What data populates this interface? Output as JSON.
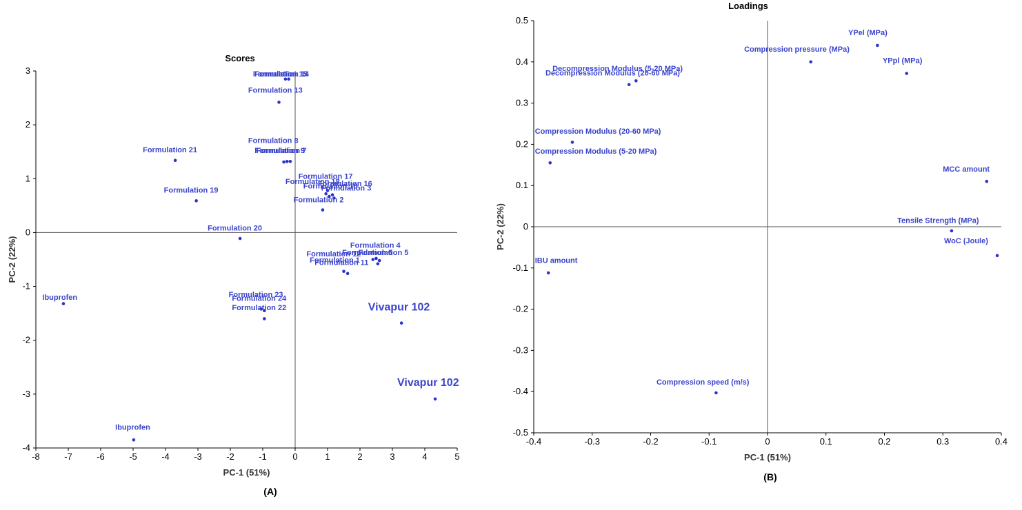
{
  "colors": {
    "marker": "#2a34c8",
    "label": "#3a44cc",
    "axis": "#000000"
  },
  "chart_data": [
    {
      "type": "scatter",
      "title": "Scores",
      "xlabel": "PC-1 (51%)",
      "ylabel": "PC-2 (22%)",
      "xlim": [
        -8,
        5
      ],
      "ylim": [
        -4,
        3
      ],
      "xticks": [
        -8,
        -7,
        -6,
        -5,
        -4,
        -3,
        -2,
        -1,
        0,
        1,
        2,
        3,
        4,
        5
      ],
      "yticks": [
        -4,
        -3,
        -2,
        -1,
        0,
        1,
        2,
        3
      ],
      "panel_label": "(A)",
      "grid": false,
      "points": [
        {
          "label": "Formulation 15",
          "x": -0.3,
          "y": 2.85,
          "lx": -1.3,
          "ly": 2.9
        },
        {
          "label": "Formulation 14",
          "x": -0.2,
          "y": 2.85,
          "lx": -1.25,
          "ly": 2.9
        },
        {
          "label": "Formulation 13",
          "x": -0.5,
          "y": 2.42,
          "lx": -1.45,
          "ly": 2.6
        },
        {
          "label": "Formulation 8",
          "x": -0.35,
          "y": 1.31,
          "lx": -1.45,
          "ly": 1.66
        },
        {
          "label": "Formulation 9",
          "x": -0.25,
          "y": 1.32,
          "lx": -1.25,
          "ly": 1.48
        },
        {
          "label": "Formulation 7",
          "x": -0.15,
          "y": 1.32,
          "lx": -1.2,
          "ly": 1.48
        },
        {
          "label": "Formulation 21",
          "x": -3.7,
          "y": 1.34,
          "lx": -4.7,
          "ly": 1.49
        },
        {
          "label": "Formulation 19",
          "x": -3.05,
          "y": 0.59,
          "lx": -4.05,
          "ly": 0.74
        },
        {
          "label": "Formulation 17",
          "x": 1.0,
          "y": 0.78,
          "lx": 0.1,
          "ly": 1.0
        },
        {
          "label": "Formulation 18",
          "x": 0.95,
          "y": 0.72,
          "lx": -0.3,
          "ly": 0.9
        },
        {
          "label": "Formulation 16",
          "x": 1.15,
          "y": 0.7,
          "lx": 0.7,
          "ly": 0.86
        },
        {
          "label": "Formulation 10",
          "x": 1.05,
          "y": 0.67,
          "lx": 0.25,
          "ly": 0.82
        },
        {
          "label": "Formulation 3",
          "x": 1.2,
          "y": 0.64,
          "lx": 0.8,
          "ly": 0.78
        },
        {
          "label": "Formulation 2",
          "x": 0.85,
          "y": 0.42,
          "lx": -0.05,
          "ly": 0.56
        },
        {
          "label": "Formulation 20",
          "x": -1.7,
          "y": -0.11,
          "lx": -2.7,
          "ly": 0.04
        },
        {
          "label": "Formulation 4",
          "x": 2.5,
          "y": -0.48,
          "lx": 1.7,
          "ly": -0.28
        },
        {
          "label": "Formulation 5",
          "x": 2.6,
          "y": -0.52,
          "lx": 1.95,
          "ly": -0.42
        },
        {
          "label": "Formulation 6",
          "x": 2.4,
          "y": -0.5,
          "lx": 1.45,
          "ly": -0.42
        },
        {
          "label": "Formulation 12",
          "x": 1.5,
          "y": -0.72,
          "lx": 0.35,
          "ly": -0.44
        },
        {
          "label": "Formulation 11",
          "x": 1.62,
          "y": -0.76,
          "lx": 0.6,
          "ly": -0.6
        },
        {
          "label": "Formulation 1",
          "x": 2.55,
          "y": -0.58,
          "lx": 0.45,
          "ly": -0.56
        },
        {
          "label": "Formulation 23",
          "x": -1.05,
          "y": -1.42,
          "lx": -2.05,
          "ly": -1.2
        },
        {
          "label": "Formulation 24",
          "x": -0.95,
          "y": -1.45,
          "lx": -1.95,
          "ly": -1.27
        },
        {
          "label": "Formulation 22",
          "x": -0.95,
          "y": -1.6,
          "lx": -1.95,
          "ly": -1.44
        },
        {
          "label": "Ibuprofen",
          "x": -7.15,
          "y": -1.32,
          "lx": -7.8,
          "ly": -1.25
        },
        {
          "label": "Ibuprofen",
          "x": -4.98,
          "y": -3.85,
          "lx": -5.55,
          "ly": -3.66
        },
        {
          "label": "Vivapur 102",
          "x": 3.28,
          "y": -1.68,
          "lx": 2.25,
          "ly": -1.45,
          "big": true
        },
        {
          "label": "Vivapur 102",
          "x": 4.32,
          "y": -3.09,
          "lx": 3.15,
          "ly": -2.85,
          "big": true
        }
      ]
    },
    {
      "type": "scatter",
      "title": "Loadings",
      "xlabel": "PC-1 (51%)",
      "ylabel": "PC-2 (22%)",
      "xlim": [
        -0.4,
        0.4
      ],
      "ylim": [
        -0.5,
        0.5
      ],
      "xticks": [
        "-0.4",
        "-0.3",
        "-0.2",
        "-0.1",
        "0",
        "0.1",
        "0.2",
        "0.3",
        "0.4"
      ],
      "yticks": [
        "-0.5",
        "-0.4",
        "-0.3",
        "-0.2",
        "-0.1",
        "0",
        "0.1",
        "0.2",
        "0.3",
        "0.4",
        "0.5"
      ],
      "panel_label": "(B)",
      "grid": false,
      "points": [
        {
          "label": "YPel (MPa)",
          "x": 0.188,
          "y": 0.44,
          "lx": 0.138,
          "ly": 0.465
        },
        {
          "label": "Compression pressure (MPa)",
          "x": 0.074,
          "y": 0.4,
          "lx": -0.04,
          "ly": 0.425
        },
        {
          "label": "YPpl (MPa)",
          "x": 0.238,
          "y": 0.372,
          "lx": 0.197,
          "ly": 0.397
        },
        {
          "label": "Decompression Modulus (5-20 MPa)",
          "x": -0.225,
          "y": 0.354,
          "lx": -0.368,
          "ly": 0.378
        },
        {
          "label": "Decompression Modulus (20-60 MPa)",
          "x": -0.237,
          "y": 0.345,
          "lx": -0.38,
          "ly": 0.367
        },
        {
          "label": "Compression Modulus (20-60 MPa)",
          "x": -0.334,
          "y": 0.205,
          "lx": -0.398,
          "ly": 0.226
        },
        {
          "label": "Compression Modulus (5-20 MPa)",
          "x": -0.372,
          "y": 0.155,
          "lx": -0.398,
          "ly": 0.177
        },
        {
          "label": "MCC amount",
          "x": 0.375,
          "y": 0.11,
          "lx": 0.3,
          "ly": 0.134
        },
        {
          "label": "Tensile Strength (MPa)",
          "x": 0.315,
          "y": -0.01,
          "lx": 0.222,
          "ly": 0.009
        },
        {
          "label": "WoC (Joule)",
          "x": 0.393,
          "y": -0.07,
          "lx": 0.302,
          "ly": -0.04
        },
        {
          "label": "IBU amount",
          "x": -0.375,
          "y": -0.112,
          "lx": -0.398,
          "ly": -0.088
        },
        {
          "label": "Compression speed (m/s)",
          "x": -0.088,
          "y": -0.403,
          "lx": -0.19,
          "ly": -0.383
        }
      ]
    }
  ]
}
